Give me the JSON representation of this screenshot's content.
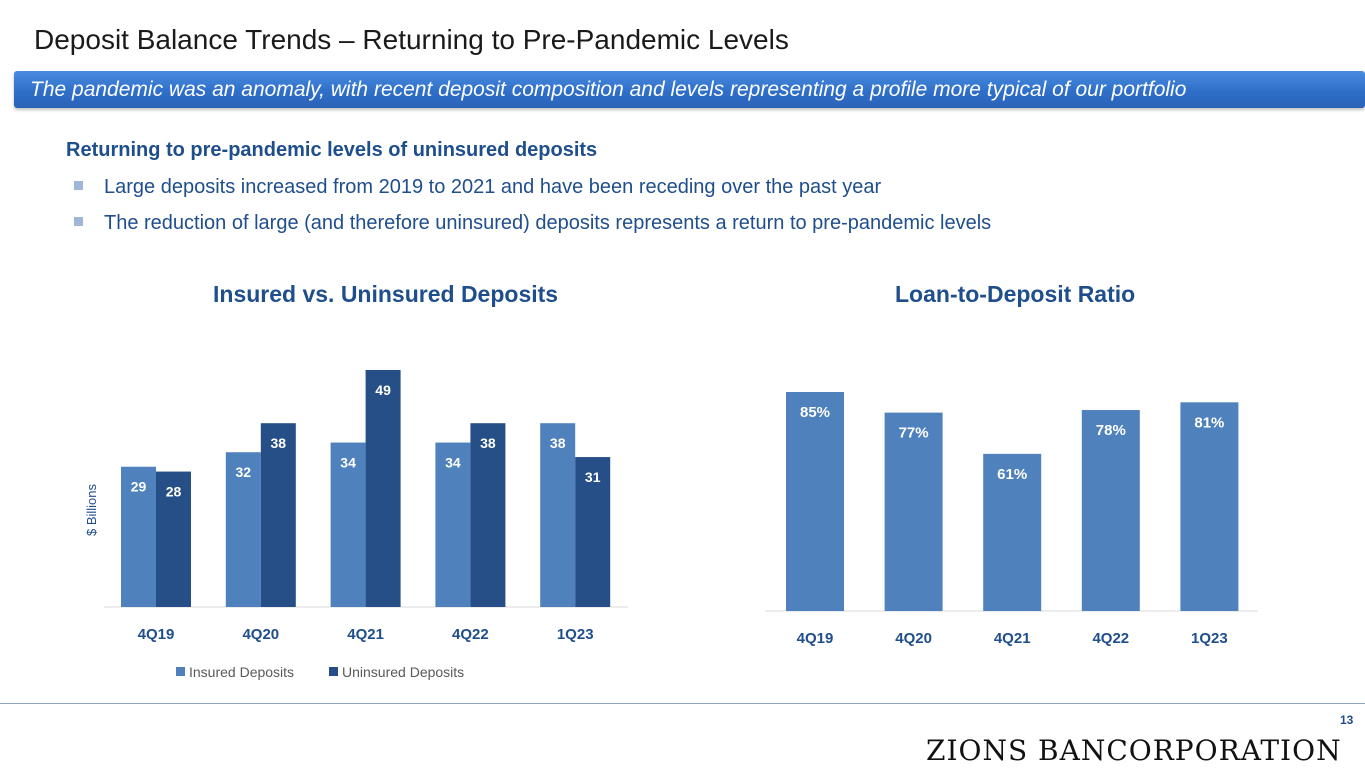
{
  "slide": {
    "title": "Deposit Balance Trends – Returning to Pre-Pandemic Levels",
    "banner": "The pandemic was an anomaly, with recent deposit composition and levels representing a profile more typical of our portfolio",
    "heading": "Returning to pre-pandemic levels of uninsured deposits",
    "bullets": [
      "Large deposits increased from 2019 to 2021 and have been receding over the past year",
      "The reduction of large (and therefore uninsured) deposits represents a return to pre-pandemic levels"
    ],
    "page_number": "13",
    "logo_text": "ZIONS BANCORPORATION"
  },
  "colors": {
    "insured": "#4f81bd",
    "uninsured": "#254f86",
    "ratio": "#4f81bd",
    "label_light": "#ffffff",
    "label_dark": "#ffffff",
    "axis_text": "#1f4e8c"
  },
  "chart_data": [
    {
      "type": "bar",
      "title": "Insured vs. Uninsured Deposits",
      "ylabel": "$ Billions",
      "xlabel": "",
      "categories": [
        "4Q19",
        "4Q20",
        "4Q21",
        "4Q22",
        "1Q23"
      ],
      "series": [
        {
          "name": "Insured Deposits",
          "values": [
            29,
            32,
            34,
            34,
            38
          ]
        },
        {
          "name": "Uninsured Deposits",
          "values": [
            28,
            38,
            49,
            38,
            31
          ]
        }
      ],
      "ylim": [
        0,
        50
      ],
      "grid": false,
      "legend": "bottom"
    },
    {
      "type": "bar",
      "title": "Loan-to-Deposit Ratio",
      "xlabel": "",
      "ylabel": "",
      "categories": [
        "4Q19",
        "4Q20",
        "4Q21",
        "4Q22",
        "1Q23"
      ],
      "series": [
        {
          "values": [
            85,
            77,
            61,
            78,
            81
          ],
          "labels": [
            "85%",
            "77%",
            "61%",
            "78%",
            "81%"
          ]
        }
      ],
      "ylim": [
        0,
        100
      ],
      "grid": false
    }
  ]
}
